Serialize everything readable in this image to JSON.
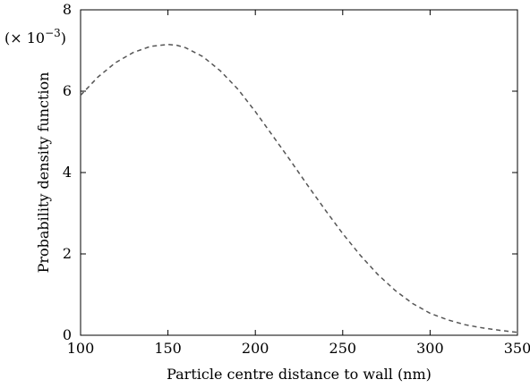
{
  "chart_data": {
    "type": "line",
    "xlabel": "Particle centre distance to wall (nm)",
    "ylabel": "Probability density function",
    "y_multiplier": "(× 10",
    "y_multiplier_exp": "−3",
    "y_multiplier_close": ")",
    "xlim": [
      100,
      350
    ],
    "ylim": [
      0,
      8
    ],
    "x_ticks": [
      100,
      150,
      200,
      250,
      300,
      350
    ],
    "y_ticks": [
      0,
      2,
      4,
      6,
      8
    ],
    "grid": false,
    "line_style": "dashed",
    "line_color": "#555555",
    "series": [
      {
        "x": [
          100,
          110,
          120,
          130,
          140,
          150,
          155,
          160,
          170,
          180,
          190,
          200,
          210,
          220,
          230,
          240,
          250,
          260,
          270,
          280,
          290,
          300,
          310,
          320,
          330,
          340,
          350
        ],
        "values": [
          5.9,
          6.35,
          6.7,
          6.95,
          7.1,
          7.15,
          7.13,
          7.07,
          6.85,
          6.5,
          6.05,
          5.5,
          4.9,
          4.3,
          3.68,
          3.08,
          2.5,
          1.97,
          1.5,
          1.1,
          0.78,
          0.54,
          0.38,
          0.26,
          0.18,
          0.12,
          0.07
        ]
      }
    ]
  }
}
